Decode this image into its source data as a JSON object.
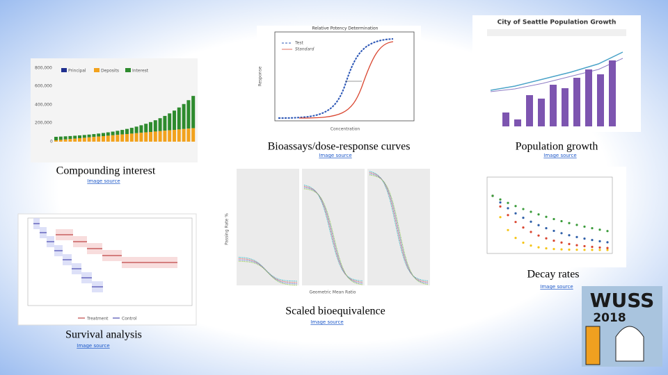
{
  "figures": [
    {
      "caption": "Compounding interest",
      "source": "Image source",
      "legend": [
        "Principal",
        "Deposits",
        "Interest"
      ],
      "axis": [
        "800,000",
        "600,000",
        "400,000",
        "200,000",
        "0"
      ]
    },
    {
      "caption": "Bioassays/dose-response curves",
      "source": "Image source",
      "title": "Relative Potency Determination",
      "legend": [
        "Test",
        "Standard"
      ],
      "xlabel": "Concentration",
      "ylabel": "Response"
    },
    {
      "caption": "Population growth",
      "source": "Image source",
      "title": "City of Seattle Population Growth"
    },
    {
      "caption": "Scaled bioequivalence",
      "source": "Image source",
      "xlabel": "Geometric Mean Ratio",
      "ylabel": "Passing Rate %"
    },
    {
      "caption": "Decay rates",
      "source": "Image source"
    },
    {
      "caption": "Survival analysis",
      "source": "Image source",
      "legend": [
        "Treatment",
        "Control"
      ]
    }
  ],
  "logo": {
    "name": "WUSS",
    "year": "2018"
  }
}
